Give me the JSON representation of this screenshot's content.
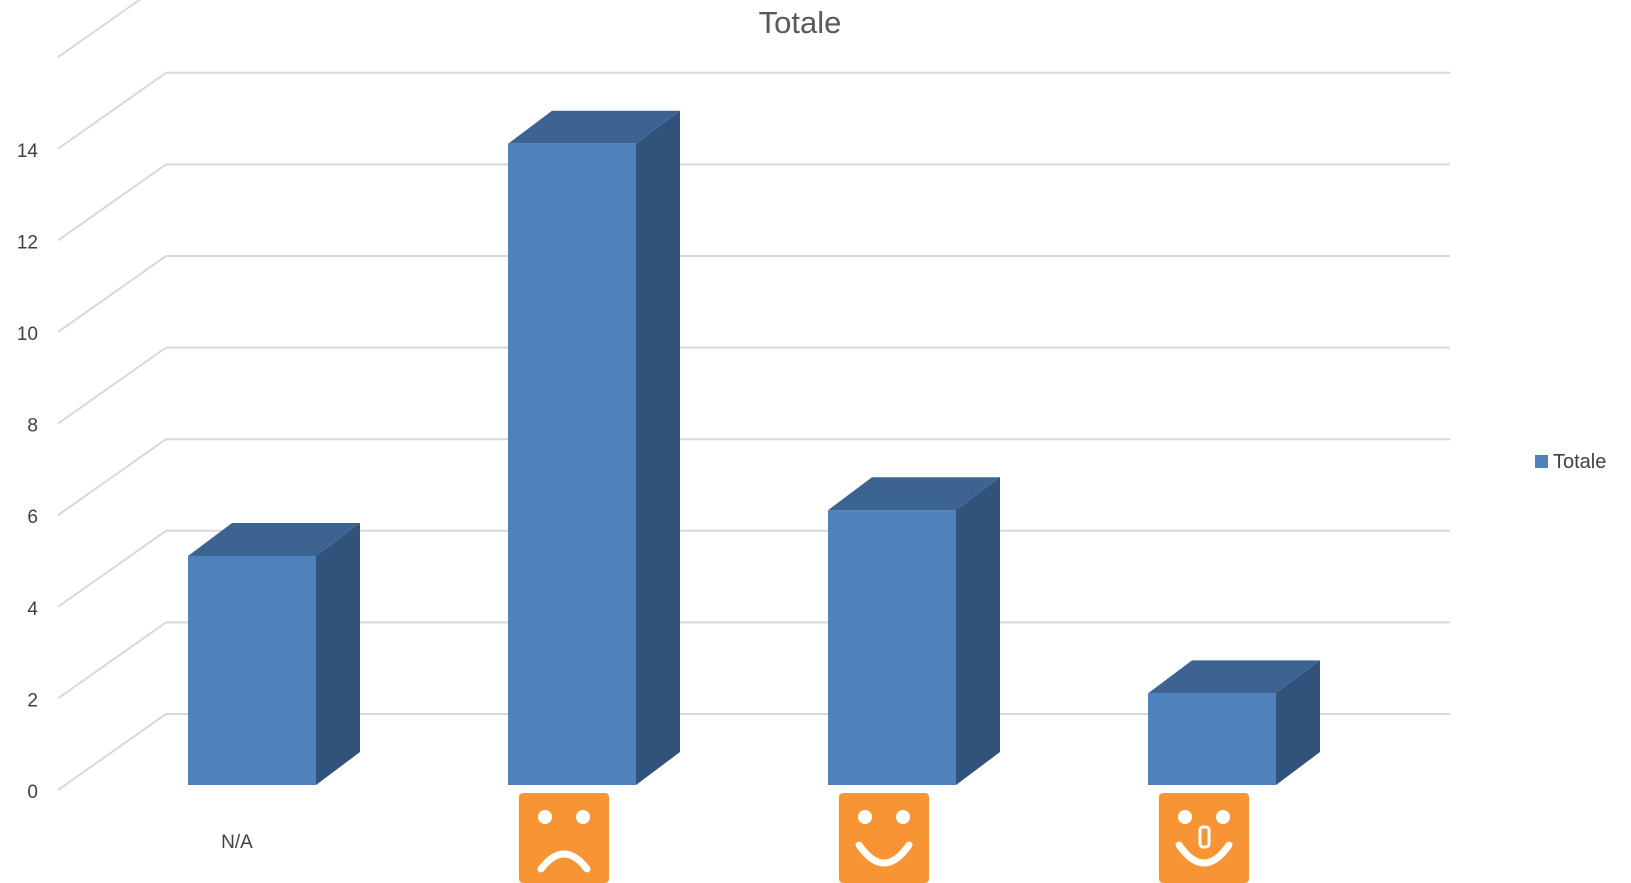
{
  "chart_data": {
    "type": "bar",
    "style": "3d-column",
    "title": "Totale",
    "categories": [
      "N/A",
      "sad-face-icon",
      "smile-face-icon",
      "happy-face-icon"
    ],
    "category_labels": [
      "N/A",
      "",
      "",
      ""
    ],
    "category_icons": [
      null,
      "sad-face-icon",
      "smile-face-icon",
      "happy-face-icon"
    ],
    "series": [
      {
        "name": "Totale",
        "values": [
          5,
          14,
          6,
          2
        ]
      }
    ],
    "yticks": [
      "0",
      "2",
      "4",
      "6",
      "8",
      "10",
      "12",
      "14"
    ],
    "ylim": [
      0,
      16
    ],
    "grid": true,
    "legend": "right",
    "colors": {
      "front": "#4F81BD",
      "side": "#31527A",
      "top": "#3D6392",
      "icon_bg": "#F79433",
      "grid": "#D9D9D9"
    }
  }
}
